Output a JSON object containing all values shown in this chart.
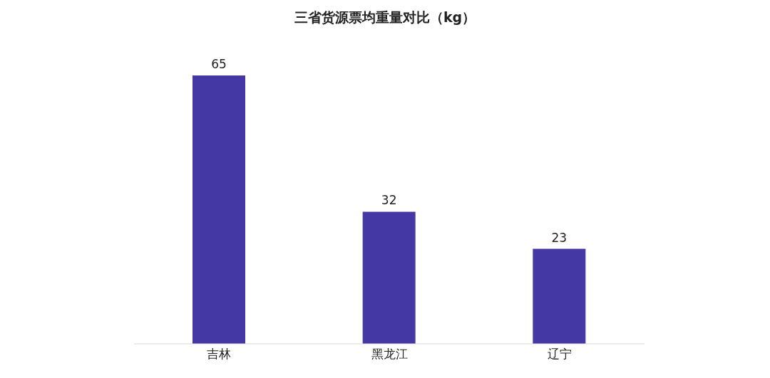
{
  "chart_data": {
    "type": "bar",
    "title": "三省货源票均重量对比（kg）",
    "categories": [
      "吉林",
      "黑龙江",
      "辽宁"
    ],
    "values": [
      65,
      32,
      23
    ],
    "color": "#4338a4",
    "data_labels": true
  }
}
